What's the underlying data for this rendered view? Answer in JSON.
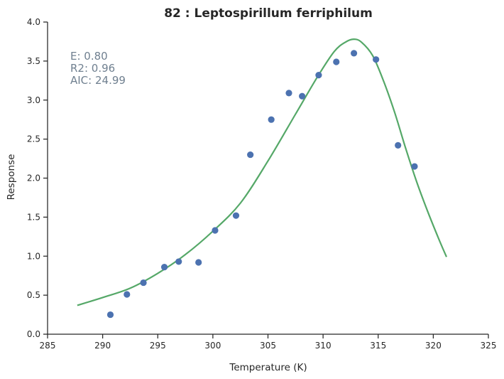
{
  "chart_data": {
    "type": "scatter",
    "title": "82 : Leptospirillum ferriphilum",
    "xlabel": "Temperature (K)",
    "ylabel": "Response",
    "xlim": [
      285,
      325
    ],
    "ylim": [
      0.0,
      4.0
    ],
    "xticks": [
      "285",
      "290",
      "295",
      "300",
      "305",
      "310",
      "315",
      "320",
      "325"
    ],
    "yticks": [
      "0.0",
      "0.5",
      "1.0",
      "1.5",
      "2.0",
      "2.5",
      "3.0",
      "3.5",
      "4.0"
    ],
    "grid": false,
    "series": [
      {
        "kind": "points",
        "color": "#4c72b0",
        "x": [
          290.7,
          292.2,
          293.7,
          295.6,
          296.9,
          298.7,
          300.2,
          302.1,
          303.4,
          305.3,
          306.9,
          308.1,
          309.6,
          311.2,
          312.8,
          314.8,
          316.8,
          318.3
        ],
        "y": [
          0.25,
          0.51,
          0.66,
          0.86,
          0.93,
          0.92,
          1.33,
          1.52,
          2.3,
          2.75,
          3.09,
          3.05,
          3.32,
          3.49,
          3.6,
          3.52,
          2.42,
          2.15
        ]
      },
      {
        "kind": "fit-curve",
        "color": "#55a868",
        "x": [
          287.7,
          290.0,
          292.5,
          295.0,
          297.5,
          300.0,
          302.5,
          305.0,
          307.5,
          309.5,
          311.0,
          312.0,
          312.8,
          313.5,
          314.5,
          315.5,
          316.5,
          317.5,
          318.5,
          319.5,
          320.5,
          321.2
        ],
        "y": [
          0.37,
          0.47,
          0.59,
          0.78,
          1.02,
          1.32,
          1.68,
          2.22,
          2.82,
          3.3,
          3.62,
          3.74,
          3.78,
          3.74,
          3.57,
          3.24,
          2.84,
          2.38,
          1.95,
          1.57,
          1.22,
          0.99
        ]
      }
    ],
    "annotations": {
      "e_text": "E:  0.80",
      "r2_text": "R2:  0.96",
      "aic_text": "AIC: 24.99",
      "color": "#708090"
    }
  }
}
